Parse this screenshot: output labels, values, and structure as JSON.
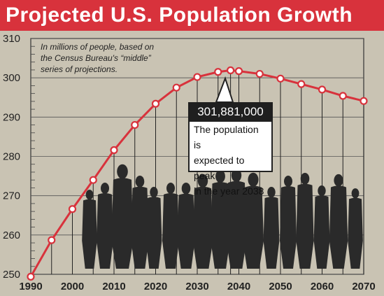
{
  "header": {
    "title": "Projected U.S. Population Growth"
  },
  "note": {
    "line1": "In millions of people, based on",
    "line2": "the Census Bureau's “middle”",
    "line3": "series of projections."
  },
  "callout": {
    "value": "301,881,000",
    "line1": "The population is",
    "line2": "expected to peak",
    "line3": "in the year 2038"
  },
  "chart_data": {
    "type": "line",
    "title": "Projected U.S. Population Growth",
    "xlabel": "",
    "ylabel": "",
    "xlim": [
      1990,
      2070
    ],
    "ylim": [
      250,
      310
    ],
    "x_ticks": [
      "1990",
      "2000",
      "2010",
      "2020",
      "2030",
      "2040",
      "2050",
      "2060",
      "2070"
    ],
    "y_ticks": [
      "250",
      "260",
      "270",
      "280",
      "290",
      "300",
      "310"
    ],
    "grid": "horizontal",
    "series": [
      {
        "color": "#d8323c",
        "x": [
          1990,
          1995,
          2000,
          2005,
          2010,
          2015,
          2020,
          2025,
          2030,
          2035,
          2038,
          2040,
          2045,
          2050,
          2055,
          2060,
          2065,
          2070
        ],
        "y": [
          249.4,
          258.7,
          266.6,
          274.0,
          281.6,
          288.0,
          293.4,
          297.5,
          300.2,
          301.5,
          301.9,
          301.7,
          301.0,
          299.8,
          298.4,
          297.0,
          295.4,
          294.1
        ]
      }
    ]
  }
}
